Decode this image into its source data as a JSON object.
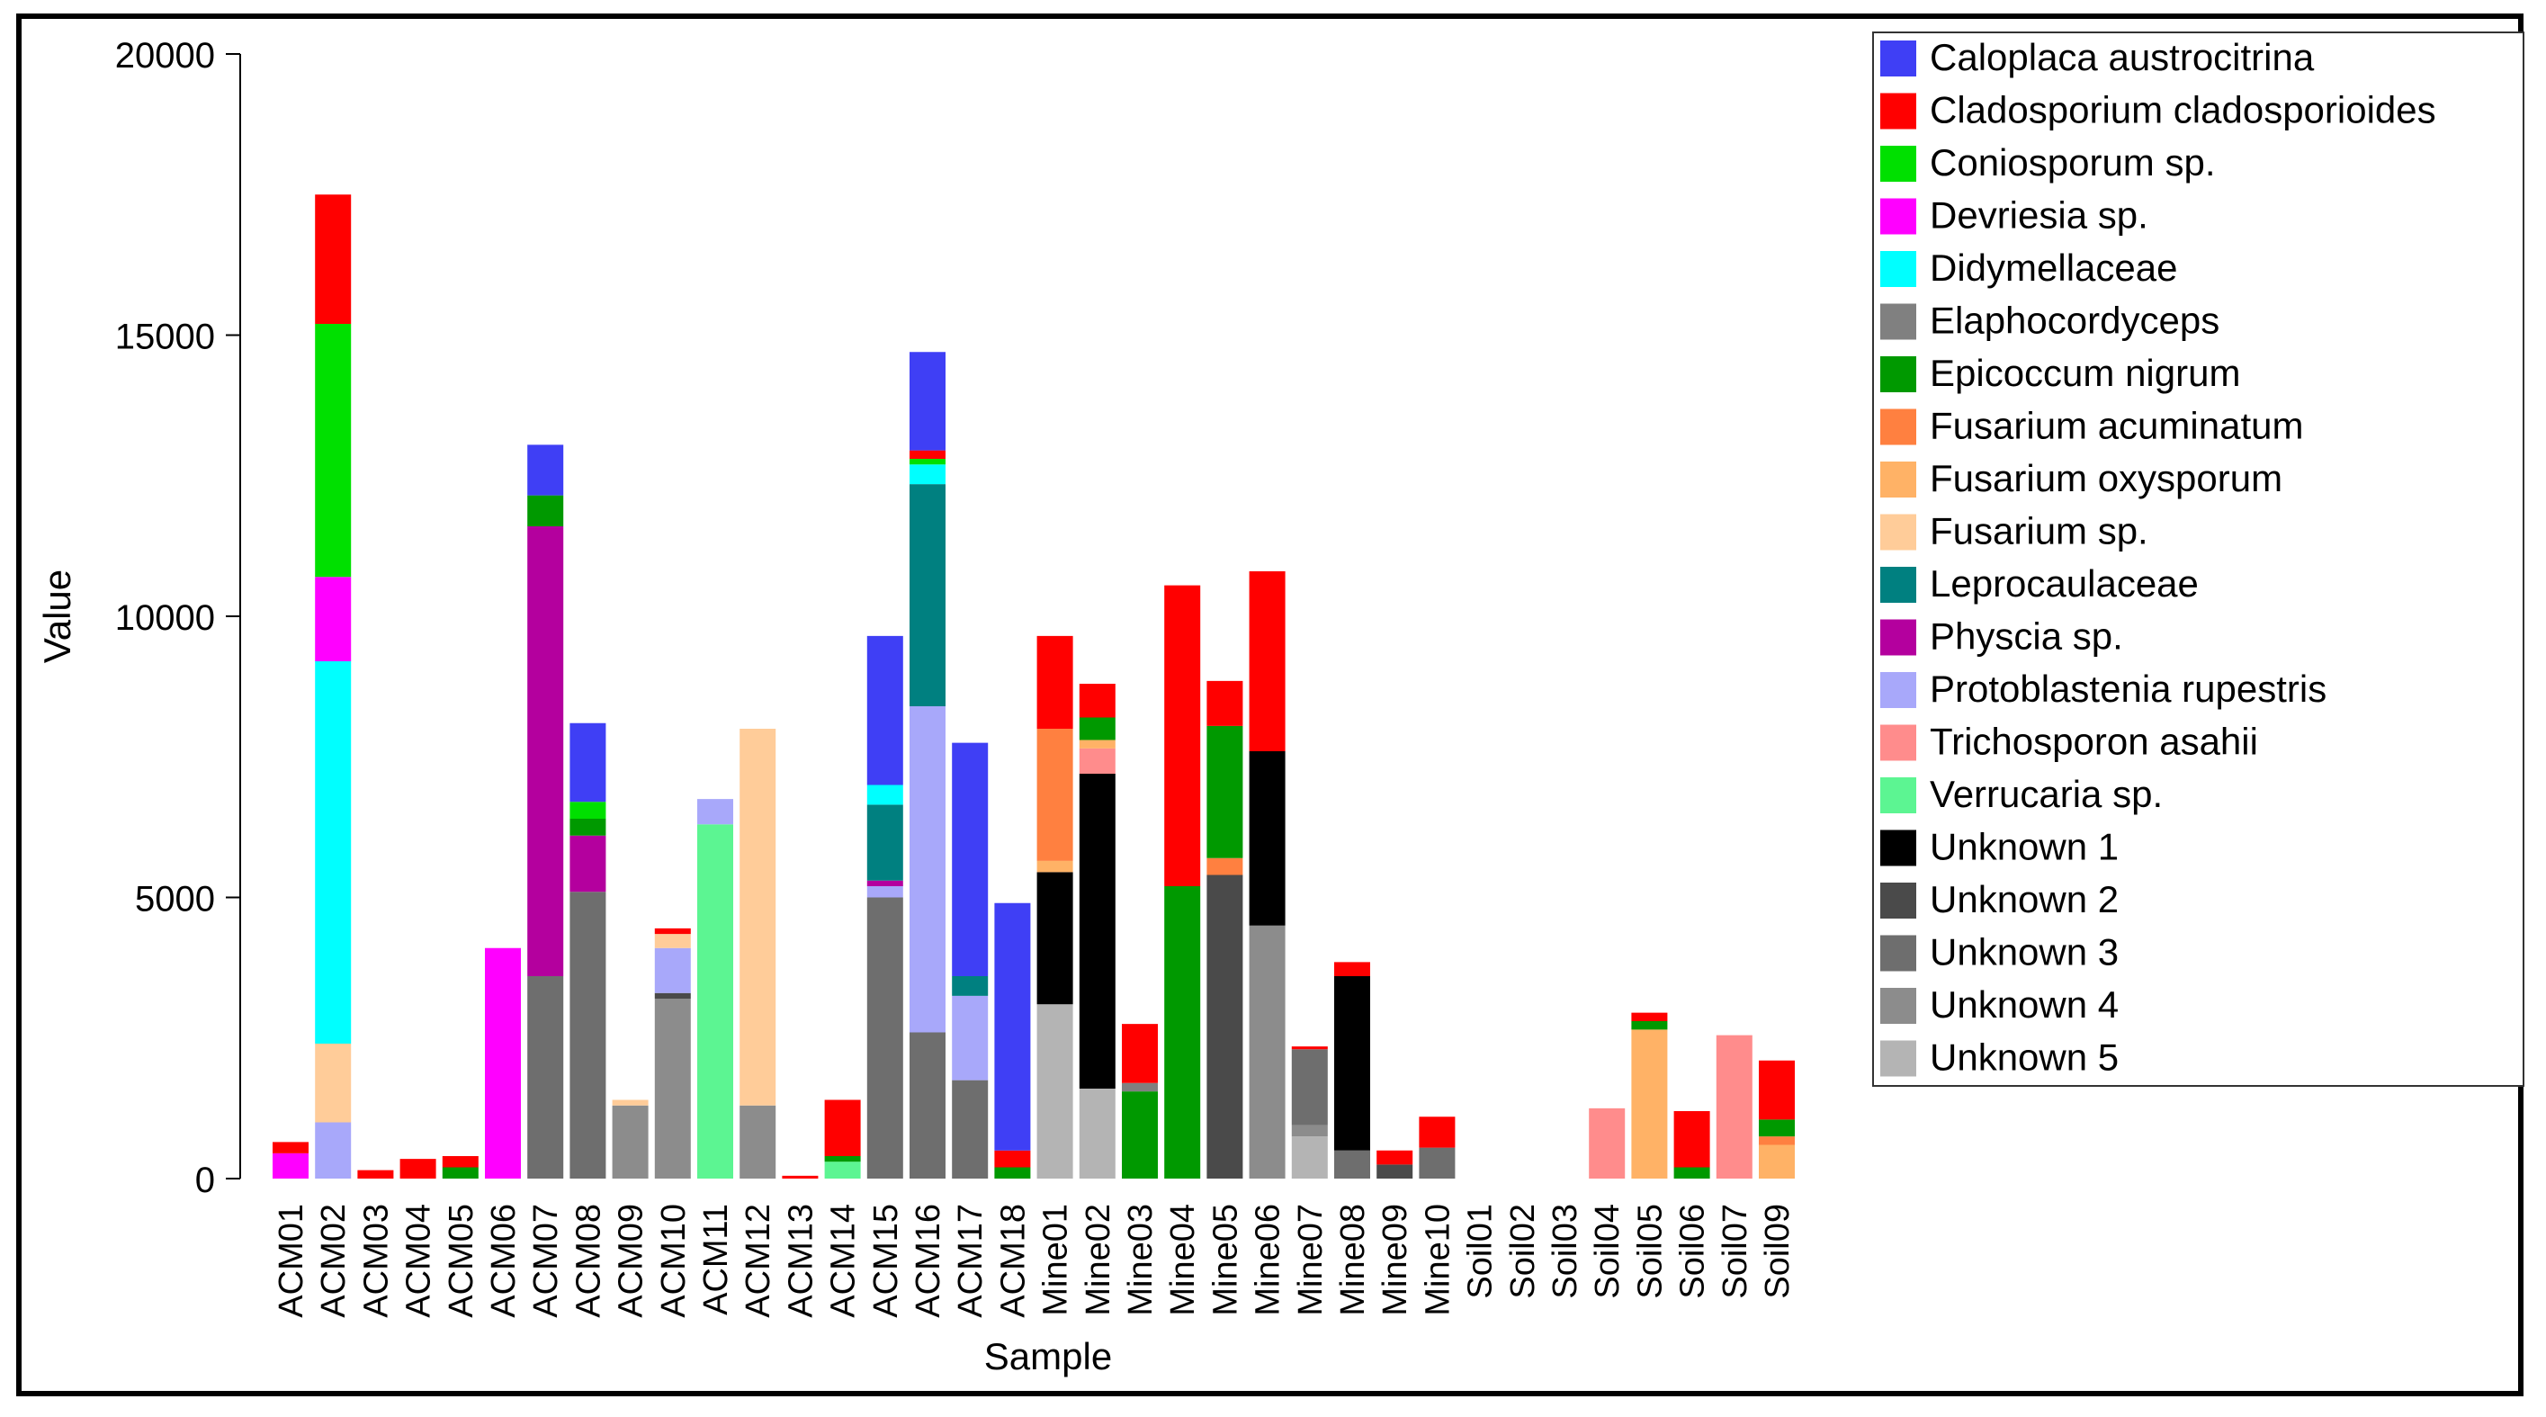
{
  "chart_data": {
    "type": "bar",
    "stacked": true,
    "xlabel": "Sample",
    "ylabel": "Value",
    "ylim": [
      0,
      20000
    ],
    "yticks": [
      0,
      5000,
      10000,
      15000,
      20000
    ],
    "categories": [
      "ACM01",
      "ACM02",
      "ACM03",
      "ACM04",
      "ACM05",
      "ACM06",
      "ACM07",
      "ACM08",
      "ACM09",
      "ACM10",
      "ACM11",
      "ACM12",
      "ACM13",
      "ACM14",
      "ACM15",
      "ACM16",
      "ACM17",
      "ACM18",
      "Mine01",
      "Mine02",
      "Mine03",
      "Mine04",
      "Mine05",
      "Mine06",
      "Mine07",
      "Mine08",
      "Mine09",
      "Mine10",
      "Soil01",
      "Soil02",
      "Soil03",
      "Soil04",
      "Soil05",
      "Soil06",
      "Soil07",
      "Soil09"
    ],
    "legend": {
      "position": "top-right"
    },
    "series": [
      {
        "name": "Unknown 5",
        "color": "#b4b4b4",
        "values": [
          0,
          0,
          0,
          0,
          0,
          0,
          0,
          0,
          0,
          0,
          0,
          0,
          0,
          0,
          0,
          0,
          0,
          0,
          3100,
          1600,
          0,
          0,
          0,
          0,
          750,
          0,
          0,
          0,
          0,
          0,
          0,
          0,
          0,
          0,
          0,
          0
        ]
      },
      {
        "name": "Unknown 4",
        "color": "#8c8c8c",
        "values": [
          0,
          0,
          0,
          0,
          0,
          0,
          0,
          0,
          1300,
          3200,
          0,
          1300,
          0,
          0,
          0,
          0,
          0,
          0,
          0,
          0,
          0,
          0,
          0,
          4500,
          200,
          0,
          0,
          0,
          0,
          0,
          0,
          0,
          0,
          0,
          0,
          0
        ]
      },
      {
        "name": "Unknown 3",
        "color": "#6e6e6e",
        "values": [
          0,
          0,
          0,
          0,
          0,
          0,
          3600,
          5100,
          0,
          0,
          0,
          0,
          0,
          0,
          5000,
          2600,
          1750,
          0,
          0,
          0,
          0,
          0,
          0,
          0,
          1350,
          500,
          0,
          550,
          0,
          0,
          0,
          0,
          0,
          0,
          0,
          0
        ]
      },
      {
        "name": "Unknown 2",
        "color": "#4a4a4a",
        "values": [
          0,
          0,
          0,
          0,
          0,
          0,
          0,
          0,
          0,
          100,
          0,
          0,
          0,
          0,
          0,
          0,
          0,
          0,
          0,
          0,
          0,
          0,
          5400,
          0,
          0,
          0,
          250,
          0,
          0,
          0,
          0,
          0,
          0,
          0,
          0,
          0
        ]
      },
      {
        "name": "Unknown 1",
        "color": "#000000",
        "values": [
          0,
          0,
          0,
          0,
          0,
          0,
          0,
          0,
          0,
          0,
          0,
          0,
          0,
          0,
          0,
          0,
          0,
          0,
          2350,
          5600,
          0,
          0,
          0,
          3100,
          0,
          3100,
          0,
          0,
          0,
          0,
          0,
          0,
          0,
          0,
          0,
          0
        ]
      },
      {
        "name": "Verrucaria sp.",
        "color": "#5cf592",
        "values": [
          0,
          0,
          0,
          0,
          0,
          0,
          0,
          0,
          0,
          0,
          6300,
          0,
          0,
          300,
          0,
          0,
          0,
          0,
          0,
          0,
          0,
          0,
          0,
          0,
          0,
          0,
          0,
          0,
          0,
          0,
          0,
          0,
          0,
          0,
          0,
          0
        ]
      },
      {
        "name": "Trichosporon asahii",
        "color": "#ff8c8c",
        "values": [
          0,
          0,
          0,
          0,
          0,
          0,
          0,
          0,
          0,
          0,
          0,
          0,
          0,
          0,
          0,
          0,
          0,
          0,
          0,
          450,
          0,
          0,
          0,
          0,
          0,
          0,
          0,
          0,
          0,
          0,
          0,
          1250,
          0,
          0,
          2550,
          0
        ]
      },
      {
        "name": "Protoblastenia rupestris",
        "color": "#a8a8fa",
        "values": [
          0,
          1000,
          0,
          0,
          0,
          0,
          0,
          0,
          0,
          800,
          450,
          0,
          0,
          0,
          200,
          5800,
          1500,
          0,
          0,
          0,
          0,
          0,
          0,
          0,
          0,
          0,
          0,
          0,
          0,
          0,
          0,
          0,
          0,
          0,
          0,
          0
        ]
      },
      {
        "name": "Physcia sp.",
        "color": "#b4009e",
        "values": [
          0,
          0,
          0,
          0,
          0,
          0,
          8000,
          1000,
          0,
          0,
          0,
          0,
          0,
          0,
          100,
          0,
          0,
          0,
          0,
          0,
          0,
          0,
          0,
          0,
          0,
          0,
          0,
          0,
          0,
          0,
          0,
          0,
          0,
          0,
          0,
          0
        ]
      },
      {
        "name": "Leprocaulaceae",
        "color": "#008080",
        "values": [
          0,
          0,
          0,
          0,
          0,
          0,
          0,
          0,
          0,
          0,
          0,
          0,
          0,
          0,
          1350,
          3950,
          350,
          0,
          0,
          0,
          0,
          0,
          0,
          0,
          0,
          0,
          0,
          0,
          0,
          0,
          0,
          0,
          0,
          0,
          0,
          0
        ]
      },
      {
        "name": "Fusarium sp.",
        "color": "#ffcc99",
        "values": [
          0,
          1400,
          0,
          0,
          0,
          0,
          0,
          0,
          100,
          250,
          0,
          6700,
          0,
          0,
          0,
          0,
          0,
          0,
          0,
          0,
          0,
          0,
          0,
          0,
          0,
          0,
          0,
          0,
          0,
          0,
          0,
          0,
          0,
          0,
          0,
          0
        ]
      },
      {
        "name": "Fusarium oxysporum",
        "color": "#ffb266",
        "values": [
          0,
          0,
          0,
          0,
          0,
          0,
          0,
          0,
          0,
          0,
          0,
          0,
          0,
          0,
          0,
          0,
          0,
          0,
          200,
          150,
          0,
          0,
          0,
          0,
          0,
          0,
          0,
          0,
          0,
          0,
          0,
          0,
          2650,
          0,
          0,
          600
        ]
      },
      {
        "name": "Fusarium acuminatum",
        "color": "#ff8040",
        "values": [
          0,
          0,
          0,
          0,
          0,
          0,
          0,
          0,
          0,
          0,
          0,
          0,
          0,
          0,
          0,
          0,
          0,
          0,
          2350,
          0,
          0,
          0,
          300,
          0,
          0,
          0,
          0,
          0,
          0,
          0,
          0,
          0,
          0,
          0,
          0,
          150
        ]
      },
      {
        "name": "Epicoccum nigrum",
        "color": "#009900",
        "values": [
          0,
          0,
          0,
          0,
          200,
          0,
          550,
          300,
          0,
          0,
          0,
          0,
          0,
          100,
          0,
          0,
          0,
          200,
          0,
          400,
          1550,
          5200,
          2350,
          0,
          0,
          0,
          0,
          0,
          0,
          0,
          0,
          0,
          150,
          200,
          0,
          300
        ]
      },
      {
        "name": "Elaphocordyceps",
        "color": "#808080",
        "values": [
          0,
          0,
          0,
          0,
          0,
          0,
          0,
          0,
          0,
          0,
          0,
          0,
          0,
          0,
          0,
          0,
          0,
          0,
          0,
          0,
          150,
          0,
          0,
          0,
          0,
          0,
          0,
          0,
          0,
          0,
          0,
          0,
          0,
          0,
          0,
          0
        ]
      },
      {
        "name": "Didymellaceae",
        "color": "#00ffff",
        "values": [
          0,
          6800,
          0,
          0,
          0,
          0,
          0,
          0,
          0,
          0,
          0,
          0,
          0,
          0,
          350,
          350,
          0,
          0,
          0,
          0,
          0,
          0,
          0,
          0,
          0,
          0,
          0,
          0,
          0,
          0,
          0,
          0,
          0,
          0,
          0,
          0
        ]
      },
      {
        "name": "Devriesia sp.",
        "color": "#ff00ff",
        "values": [
          450,
          1500,
          0,
          0,
          0,
          4100,
          0,
          0,
          0,
          0,
          0,
          0,
          0,
          0,
          0,
          0,
          0,
          0,
          0,
          0,
          0,
          0,
          0,
          0,
          0,
          0,
          0,
          0,
          0,
          0,
          0,
          0,
          0,
          0,
          0,
          0
        ]
      },
      {
        "name": "Coniosporum sp.",
        "color": "#00e000",
        "values": [
          0,
          4500,
          0,
          0,
          0,
          0,
          0,
          300,
          0,
          0,
          0,
          0,
          0,
          0,
          0,
          100,
          0,
          0,
          0,
          0,
          0,
          0,
          0,
          0,
          0,
          0,
          0,
          0,
          0,
          0,
          0,
          0,
          0,
          0,
          0,
          0
        ]
      },
      {
        "name": "Cladosporium cladosporioides",
        "color": "#ff0000",
        "values": [
          200,
          2300,
          150,
          350,
          200,
          0,
          0,
          0,
          0,
          100,
          0,
          0,
          50,
          1000,
          0,
          150,
          0,
          300,
          1650,
          600,
          1050,
          5350,
          800,
          3200,
          50,
          250,
          250,
          550,
          0,
          0,
          0,
          0,
          150,
          1000,
          0,
          1050
        ]
      },
      {
        "name": "Caloplaca austrocitrina",
        "color": "#3f3ff5",
        "values": [
          0,
          0,
          0,
          0,
          0,
          0,
          900,
          1400,
          0,
          0,
          0,
          0,
          0,
          0,
          2650,
          1750,
          4150,
          4400,
          0,
          0,
          0,
          0,
          0,
          0,
          0,
          0,
          0,
          0,
          0,
          0,
          0,
          0,
          0,
          0,
          0,
          0
        ]
      }
    ],
    "legend_order": [
      "Caloplaca austrocitrina",
      "Cladosporium cladosporioides",
      "Coniosporum sp.",
      "Devriesia sp.",
      "Didymellaceae",
      "Elaphocordyceps",
      "Epicoccum nigrum",
      "Fusarium acuminatum",
      "Fusarium oxysporum",
      "Fusarium sp.",
      "Leprocaulaceae",
      "Physcia sp.",
      "Protoblastenia rupestris",
      "Trichosporon asahii",
      "Verrucaria sp.",
      "Unknown 1",
      "Unknown 2",
      "Unknown 3",
      "Unknown 4",
      "Unknown 5"
    ]
  }
}
